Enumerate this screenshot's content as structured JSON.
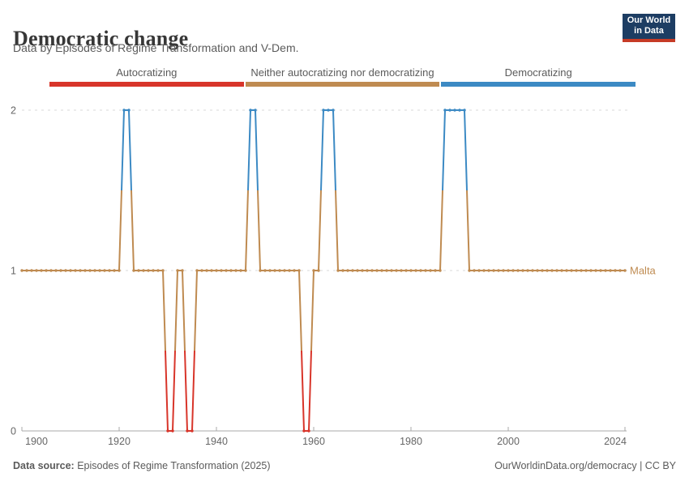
{
  "header": {
    "title": "Democratic change",
    "subtitle": "Data by Episodes of Regime Transformation and V-Dem.",
    "logo": {
      "line1": "Our World",
      "line2": "in Data",
      "bg_color": "#1d3d63",
      "accent_color": "#c63b26"
    }
  },
  "footer": {
    "source_label": "Data source:",
    "source_text": " Episodes of Regime Transformation (2025)",
    "credit": "OurWorldinData.org/democracy | CC BY"
  },
  "axis_text_color": "#666666",
  "grid_color": "#d9d9d9",
  "axis_line_color": "#a8a8a8",
  "chart_data": {
    "type": "line",
    "title": "Democratic change",
    "subtitle": "Data by Episodes of Regime Transformation and V-Dem.",
    "xlabel": "",
    "ylabel": "",
    "xlim": [
      1900,
      2024
    ],
    "ylim": [
      0,
      2
    ],
    "x_ticks": [
      1900,
      1920,
      1940,
      1960,
      1980,
      2000,
      2024
    ],
    "y_ticks": [
      0,
      1,
      2
    ],
    "grid": "dashed horizontal gridlines at y=1 and y=2, solid baseline at y=0",
    "legend_position": "top",
    "marker": "small circle marker at every yearly data point, colored by category",
    "categories": [
      {
        "value": 0,
        "label": "Autocratizing",
        "color": "#d8352a"
      },
      {
        "value": 1,
        "label": "Neither autocratizing nor democratizing",
        "color": "#bf8b51"
      },
      {
        "value": 2,
        "label": "Democratizing",
        "color": "#3c8ac4"
      }
    ],
    "series": [
      {
        "name": "Malta",
        "note": "runs are [start_year, end_year, value] inclusive; value 0=autocratizing, 1=neither, 2=democratizing",
        "runs": [
          [
            1900,
            1920,
            1
          ],
          [
            1921,
            1922,
            2
          ],
          [
            1923,
            1929,
            1
          ],
          [
            1930,
            1931,
            0
          ],
          [
            1932,
            1933,
            1
          ],
          [
            1934,
            1935,
            0
          ],
          [
            1936,
            1946,
            1
          ],
          [
            1947,
            1948,
            2
          ],
          [
            1949,
            1957,
            1
          ],
          [
            1958,
            1959,
            0
          ],
          [
            1960,
            1961,
            1
          ],
          [
            1962,
            1964,
            2
          ],
          [
            1965,
            1986,
            1
          ],
          [
            1987,
            1991,
            2
          ],
          [
            1992,
            2024,
            1
          ]
        ]
      }
    ]
  }
}
